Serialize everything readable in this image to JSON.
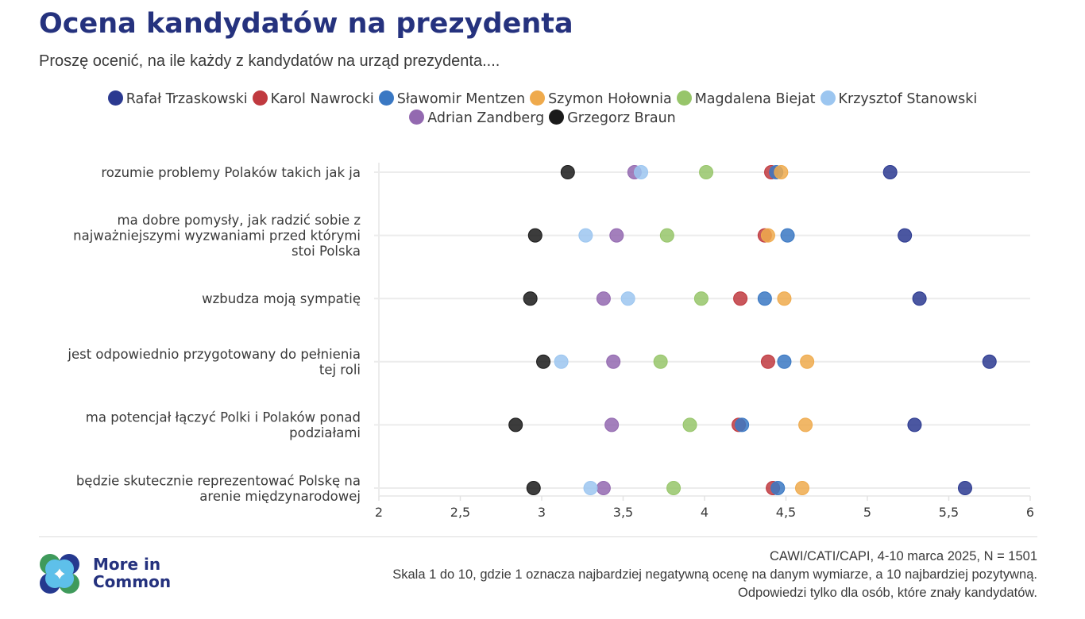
{
  "header": {
    "title": "Ocena kandydatów na prezydenta",
    "subtitle": "Proszę ocenić, na ile każdy z kandydatów na urząd prezydenta...."
  },
  "legend_rows": [
    [
      0,
      1,
      2,
      3,
      4,
      5
    ],
    [
      6,
      7
    ]
  ],
  "chart_data": {
    "type": "scatter",
    "subtype": "dot-plot",
    "title": "Ocena kandydatów na prezydenta",
    "xlabel": "",
    "ylabel": "",
    "xlim": [
      2,
      6
    ],
    "x_ticks": [
      2,
      2.5,
      3,
      3.5,
      4,
      4.5,
      5,
      5.5,
      6
    ],
    "x_tick_labels": [
      "2",
      "2,5",
      "3",
      "3,5",
      "4",
      "4,5",
      "5",
      "5,5",
      "6"
    ],
    "grid": "horizontal",
    "legend_position": "top",
    "categories": [
      "rozumie problemy Polaków takich jak ja",
      "ma dobre pomysły, jak radzić sobie z najważniejszymi wyzwaniami przed którymi stoi Polska",
      "wzbudza moją sympatię",
      "jest odpowiednio przygotowany do pełnienia tej roli",
      "ma potencjał łączyć Polki i Polaków ponad podziałami",
      "będzie skutecznie reprezentować Polskę na arenie międzynarodowej"
    ],
    "category_lines": [
      [
        "rozumie problemy Polaków takich jak ja"
      ],
      [
        "ma dobre pomysły, jak radzić sobie z",
        "najważniejszymi wyzwaniami przed którymi",
        "stoi Polska"
      ],
      [
        "wzbudza moją sympatię"
      ],
      [
        "jest odpowiednio przygotowany do pełnienia",
        "tej roli"
      ],
      [
        "ma potencjał łączyć Polki i Polaków ponad",
        "podziałami"
      ],
      [
        "będzie skutecznie reprezentować Polskę na",
        "arenie międzynarodowej"
      ]
    ],
    "series": [
      {
        "name": "Rafał Trzaskowski",
        "color": "#2b3990",
        "values": [
          5.14,
          5.23,
          5.32,
          5.75,
          5.29,
          5.6
        ]
      },
      {
        "name": "Karol Nawrocki",
        "color": "#c0393f",
        "values": [
          4.41,
          4.37,
          4.22,
          4.39,
          4.21,
          4.42
        ]
      },
      {
        "name": "Sławomir Mentzen",
        "color": "#3a78c3",
        "values": [
          4.44,
          4.51,
          4.37,
          4.49,
          4.23,
          4.45
        ]
      },
      {
        "name": "Szymon Hołownia",
        "color": "#efaa4c",
        "values": [
          4.47,
          4.39,
          4.49,
          4.63,
          4.62,
          4.6
        ]
      },
      {
        "name": "Magdalena Biejat",
        "color": "#97c56a",
        "values": [
          4.01,
          3.77,
          3.98,
          3.73,
          3.91,
          3.81
        ]
      },
      {
        "name": "Krzysztof Stanowski",
        "color": "#9cc6f0",
        "values": [
          3.61,
          3.27,
          3.53,
          3.12,
          null,
          3.3
        ]
      },
      {
        "name": "Adrian Zandberg",
        "color": "#9369b0",
        "values": [
          3.57,
          3.46,
          3.38,
          3.44,
          3.43,
          3.38
        ]
      },
      {
        "name": "Grzegorz Braun",
        "color": "#1a1a1a",
        "values": [
          3.16,
          2.96,
          2.93,
          3.01,
          2.84,
          2.95
        ]
      }
    ]
  },
  "footer": {
    "logo_text_line1": "More in",
    "logo_text_line2": "Common",
    "notes": [
      "CAWI/CATI/CAPI, 4-10 marca 2025, N = 1501",
      "Skala 1 do 10, gdzie 1 oznacza najbardziej negatywną ocenę na danym wymiarze, a 10 najbardziej pozytywną.",
      "Odpowiedzi tylko dla osób, które znały kandydatów."
    ]
  },
  "colors": {
    "title": "#25327e",
    "grid": "#ececec",
    "logo_green": "#3f9a5b",
    "logo_navy": "#25398f",
    "logo_light_blue": "#5ec0ea"
  }
}
